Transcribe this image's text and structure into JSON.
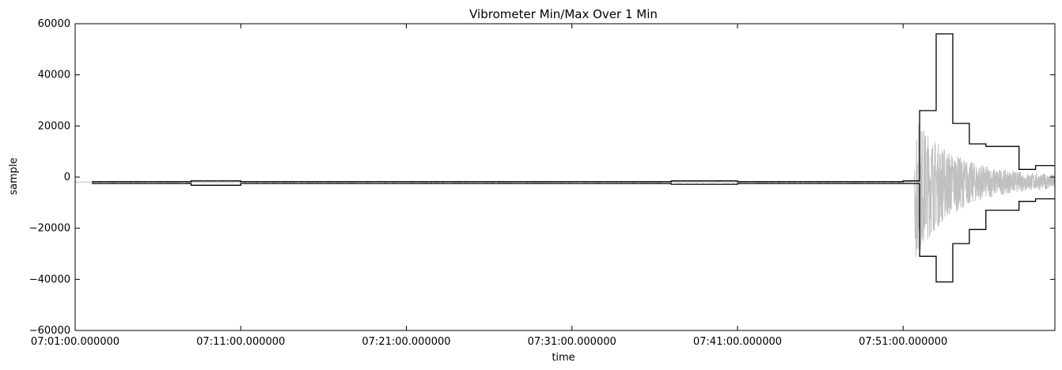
{
  "chart_data": {
    "type": "line",
    "title": "Vibrometer Min/Max Over 1 Min",
    "xlabel": "time",
    "ylabel": "sample",
    "x_start": "07:01:00.000000",
    "x_end": "08:00:10.000000",
    "xlim": [
      "07:01:00.000000",
      "08:00:10.000000"
    ],
    "ylim": [
      -60000,
      60000
    ],
    "x_tick_labels": [
      "07:01:00.000000",
      "07:11:00.000000",
      "07:21:00.000000",
      "07:31:00.000000",
      "07:41:00.000000",
      "07:51:00.000000"
    ],
    "y_ticks": [
      -60000,
      -40000,
      -20000,
      0,
      20000,
      40000,
      60000
    ],
    "y_tick_labels": [
      "−60000",
      "−40000",
      "−20000",
      "0",
      "20000",
      "40000",
      "60000"
    ],
    "grid": false,
    "colors": {
      "minmax": "#000000",
      "raw": "#c0c0c0"
    },
    "series": [
      {
        "role": "max",
        "x": [
          "07:02:00",
          "07:07:00",
          "07:08:00",
          "07:10:00",
          "07:11:00",
          "07:13:00",
          "07:21:00",
          "07:31:00",
          "07:37:00",
          "07:41:00",
          "07:45:00",
          "07:49:00",
          "07:51:00",
          "07:52:00",
          "07:53:00",
          "07:54:00",
          "07:55:00",
          "07:56:00",
          "07:58:00",
          "07:59:00",
          "08:00:10"
        ],
        "y": [
          -1800,
          -1800,
          -1500,
          -1500,
          -1800,
          -1800,
          -1800,
          -1800,
          -1500,
          -1800,
          -1800,
          -1800,
          -1500,
          26000,
          56000,
          21000,
          13000,
          12000,
          3000,
          4500,
          4500
        ]
      },
      {
        "role": "min",
        "x": [
          "07:02:00",
          "07:07:00",
          "07:08:00",
          "07:10:00",
          "07:11:00",
          "07:13:00",
          "07:21:00",
          "07:31:00",
          "07:37:00",
          "07:41:00",
          "07:45:00",
          "07:49:00",
          "07:51:00",
          "07:52:00",
          "07:53:00",
          "07:54:00",
          "07:55:00",
          "07:56:00",
          "07:58:00",
          "07:59:00",
          "08:00:10"
        ],
        "y": [
          -2500,
          -2500,
          -3200,
          -3200,
          -2500,
          -2500,
          -2500,
          -2500,
          -2800,
          -2500,
          -2500,
          -2500,
          -2500,
          -31000,
          -41000,
          -26000,
          -20500,
          -13000,
          -9500,
          -8500,
          -8500
        ]
      }
    ],
    "raw_trace": {
      "description_free": true,
      "x_start": "07:01:00",
      "quiet_level": -2000,
      "event_start": "07:51:40",
      "peak_positive": 25000,
      "peak_negative": -30000
    }
  }
}
